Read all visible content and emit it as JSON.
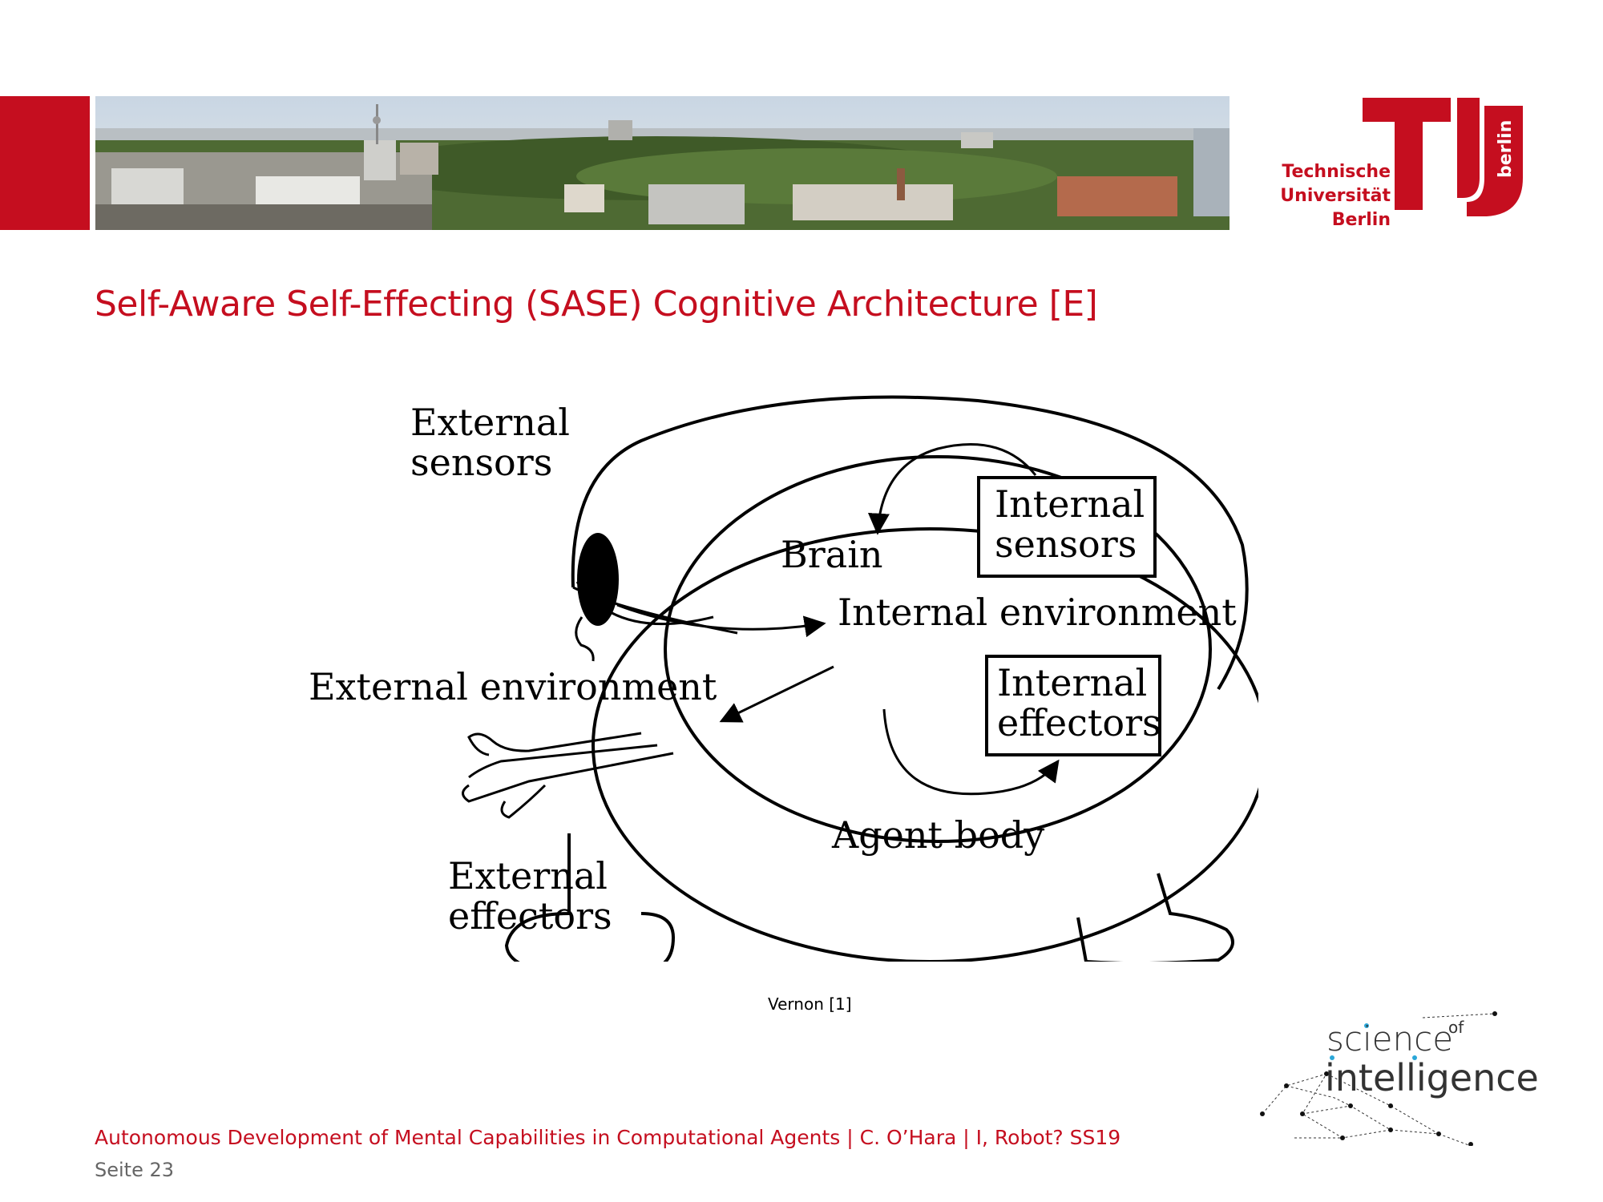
{
  "header": {
    "accent_color": "#c50e1f",
    "university_logo": {
      "line1": "Technische",
      "line2": "Universität",
      "line3": "Berlin",
      "side_text": "berlin"
    }
  },
  "slide": {
    "title": "Self-Aware Self-Effecting (SASE) Cognitive Architecture [E]"
  },
  "diagram": {
    "labels": {
      "external_sensors_1": "External",
      "external_sensors_2": "sensors",
      "brain": "Brain",
      "internal_sensors_1": "Internal",
      "internal_sensors_2": "sensors",
      "internal_environment": "Internal environment",
      "external_environment": "External environment",
      "internal_effectors_1": "Internal",
      "internal_effectors_2": "effectors",
      "agent_body": "Agent body",
      "external_effectors_1": "External",
      "external_effectors_2": "effectors"
    },
    "caption": "Vernon [1]"
  },
  "partner_logo": {
    "word1": "science",
    "word_of": "of",
    "word2": "intelligence"
  },
  "footer": {
    "text": "Autonomous Development of Mental Capabilities in Computational Agents | C. O’Hara | I, Robot? SS19",
    "page": "Seite 23"
  }
}
